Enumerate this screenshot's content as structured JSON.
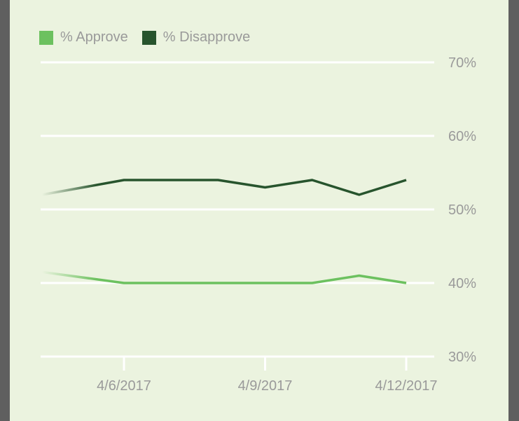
{
  "colors": {
    "approve": "#6cc15f",
    "disapprove": "#27542d",
    "panel": "#ebf3df",
    "gridline": "#ffffff",
    "label": "#9a9a9a"
  },
  "chart_data": {
    "type": "line",
    "title": "",
    "xlabel": "",
    "ylabel": "",
    "ylim": [
      30,
      70
    ],
    "y_ticks": [
      30,
      40,
      50,
      60,
      70
    ],
    "y_tick_labels": [
      "30%",
      "40%",
      "50%",
      "60%",
      "70%"
    ],
    "x_ticks": [
      "4/6/2017",
      "4/9/2017",
      "4/12/2017"
    ],
    "x_tick_labels": [
      "4/6/2017",
      "4/9/2017",
      "4/12/2017"
    ],
    "grid": true,
    "legend_position": "top-left",
    "x": [
      "4/4/2017",
      "4/5/2017",
      "4/6/2017",
      "4/7/2017",
      "4/8/2017",
      "4/9/2017",
      "4/10/2017",
      "4/11/2017",
      "4/12/2017"
    ],
    "series": [
      {
        "name": "% Approve",
        "values": [
          41.5,
          null,
          40,
          40,
          40,
          40,
          40,
          41,
          40
        ]
      },
      {
        "name": "% Disapprove",
        "values": [
          52,
          null,
          54,
          54,
          54,
          53,
          54,
          52,
          54
        ]
      }
    ]
  }
}
